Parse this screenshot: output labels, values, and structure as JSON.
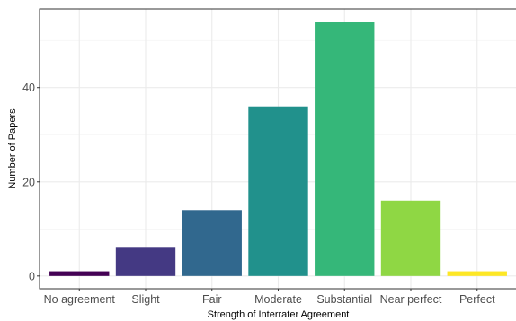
{
  "chart_data": {
    "type": "bar",
    "xlabel": "Strength of Interrater Agreement",
    "ylabel": "Number of Papers",
    "categories": [
      "No agreement",
      "Slight",
      "Fair",
      "Moderate",
      "Substantial",
      "Near perfect",
      "Perfect"
    ],
    "values": [
      1,
      6,
      14,
      36,
      54,
      16,
      1
    ],
    "colors": [
      "#440154",
      "#443983",
      "#31688E",
      "#21918C",
      "#35B779",
      "#8FD744",
      "#FDE725"
    ],
    "yticks": [
      0,
      20,
      40
    ],
    "ylim": [
      -2.7,
      56.7
    ],
    "grid": true,
    "legend": "none"
  }
}
